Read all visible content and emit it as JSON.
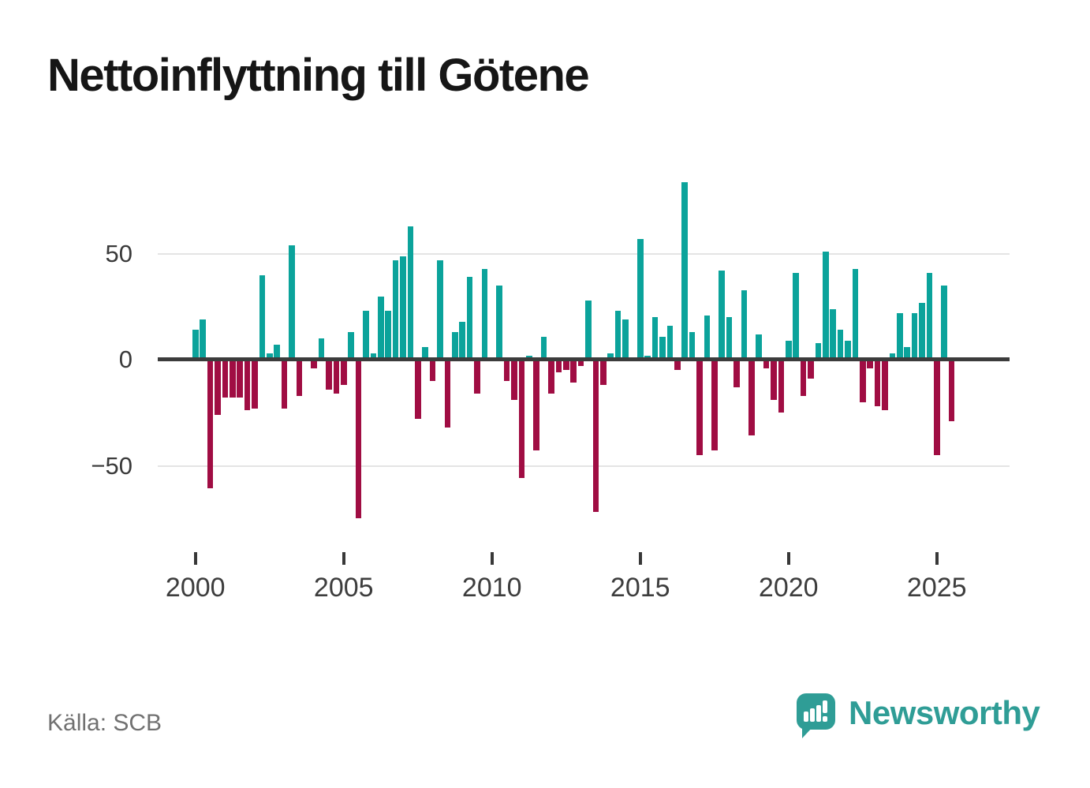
{
  "title": "Nettoinflyttning till Götene",
  "source": "Källa: SCB",
  "brand": {
    "name": "Newsworthy",
    "icon": "speech-bubble-bar-chart-icon"
  },
  "colors": {
    "positive_bar": "#0BA39B",
    "negative_bar": "#A00D43",
    "zero_line": "#3C3C3C",
    "gridline": "#E4E4E4",
    "axis_label": "#3A3A3A",
    "year_label": "#3D3D3D",
    "source_text": "#717171",
    "brand_teal": "#2F9D96",
    "title_text": "#161616",
    "background": "#FFFFFF"
  },
  "chart_data": {
    "type": "bar",
    "title": "Nettoinflyttning till Götene",
    "x_unit": "quarter",
    "x_start": "2000 Q1",
    "x_end": "2025 Q3",
    "x_tick_labels": [
      "2000",
      "2005",
      "2010",
      "2015",
      "2020",
      "2025"
    ],
    "y_tick_labels": [
      "50",
      "0",
      "−50"
    ],
    "y_gridlines": [
      50,
      -50
    ],
    "ylim": [
      -87,
      114
    ],
    "grid": true,
    "legend": false,
    "values": [
      14,
      19,
      -61,
      -26,
      -18,
      -18,
      -18,
      -24,
      -23,
      40,
      3,
      7,
      -23,
      54,
      -17,
      0,
      -4,
      10,
      -14,
      -16,
      -12,
      13,
      -75,
      23,
      3,
      30,
      23,
      47,
      49,
      63,
      -28,
      6,
      -10,
      47,
      -32,
      13,
      18,
      39,
      -16,
      43,
      0,
      35,
      -10,
      -19,
      -56,
      2,
      -43,
      11,
      -16,
      -6,
      -5,
      -11,
      -3,
      28,
      -72,
      -12,
      3,
      23,
      19,
      0,
      57,
      2,
      20,
      11,
      16,
      -5,
      84,
      13,
      -45,
      21,
      -43,
      42,
      20,
      -13,
      33,
      -36,
      12,
      -4,
      -19,
      -25,
      9,
      41,
      -17,
      -9,
      8,
      51,
      24,
      14,
      9,
      43,
      -20,
      -4,
      -22,
      -24,
      3,
      22,
      6,
      22,
      27,
      41,
      -45,
      35,
      -29
    ]
  }
}
